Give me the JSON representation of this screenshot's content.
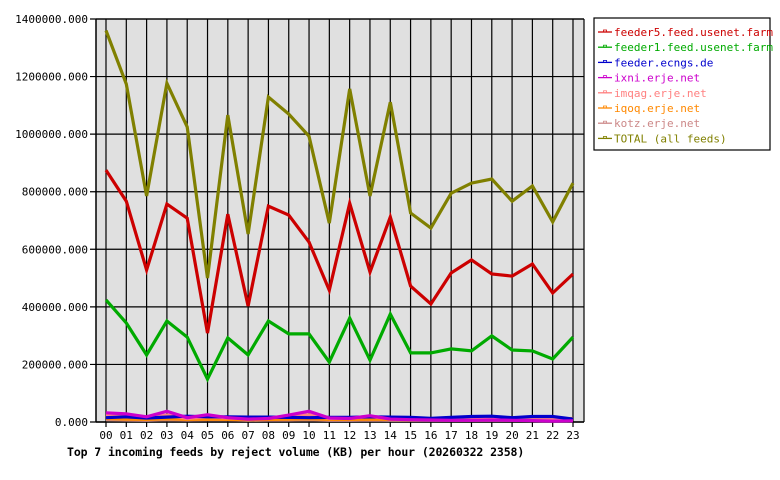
{
  "chart_data": {
    "type": "line",
    "title": "Top 7 incoming feeds by reject volume (KB) per hour (20260322 2358)",
    "xlabel": "",
    "ylabel": "",
    "ylim": [
      0,
      1400000
    ],
    "yticks": [
      "0.000",
      "200000.000",
      "400000.000",
      "600000.000",
      "800000.000",
      "1000000.000",
      "1200000.000",
      "1400000.000"
    ],
    "grid": true,
    "legend_position": "right",
    "categories": [
      "00",
      "01",
      "02",
      "03",
      "04",
      "05",
      "06",
      "07",
      "08",
      "09",
      "10",
      "11",
      "12",
      "13",
      "14",
      "15",
      "16",
      "17",
      "18",
      "19",
      "20",
      "21",
      "22",
      "23"
    ],
    "series": [
      {
        "name": "feeder5.feed.usenet.farm",
        "color": "#cc0000",
        "values": [
          875000,
          767000,
          528000,
          757000,
          708000,
          309000,
          722000,
          403000,
          750000,
          719000,
          625000,
          458000,
          760000,
          521000,
          712000,
          472000,
          410000,
          518000,
          563000,
          514000,
          507000,
          549000,
          448000,
          514000
        ]
      },
      {
        "name": "feeder1.feed.usenet.farm",
        "color": "#00aa00",
        "values": [
          424000,
          344000,
          233000,
          351000,
          295000,
          149000,
          292000,
          233000,
          351000,
          306000,
          306000,
          208000,
          361000,
          215000,
          375000,
          240000,
          240000,
          254000,
          247000,
          299000,
          250000,
          247000,
          219000,
          295000
        ]
      },
      {
        "name": "feeder.ecngs.de",
        "color": "#0000cc",
        "values": [
          15000,
          18000,
          14000,
          17000,
          20000,
          18000,
          18000,
          17000,
          17000,
          16000,
          15000,
          16000,
          16000,
          18000,
          17000,
          16000,
          13000,
          16000,
          19000,
          20000,
          15000,
          19000,
          19000,
          10000
        ]
      },
      {
        "name": "ixni.erje.net",
        "color": "#cc00cc",
        "values": [
          32000,
          28000,
          18000,
          37000,
          15000,
          25000,
          15000,
          10000,
          12000,
          24000,
          37000,
          14000,
          12000,
          22000,
          10000,
          8000,
          7000,
          6000,
          6000,
          7000,
          6000,
          5000,
          3000,
          4000
        ]
      },
      {
        "name": "imqag.erje.net",
        "color": "#ff8080",
        "values": [
          25000,
          20000,
          14000,
          24000,
          12000,
          18000,
          14000,
          12000,
          14000,
          20000,
          25000,
          12000,
          14000,
          18000,
          12000,
          10000,
          9000,
          10000,
          10000,
          12000,
          10000,
          10000,
          9000,
          8000
        ]
      },
      {
        "name": "iqoq.erje.net",
        "color": "#ff8800",
        "values": [
          12000,
          10000,
          9000,
          11000,
          9000,
          10000,
          9000,
          8000,
          9000,
          10000,
          11000,
          9000,
          9000,
          10000,
          9000,
          8000,
          8000,
          8000,
          8000,
          8000,
          8000,
          9000,
          10000,
          12000
        ]
      },
      {
        "name": "kotz.erje.net",
        "color": "#cc8888",
        "values": [
          8000,
          7000,
          6000,
          8000,
          7000,
          8000,
          8000,
          6000,
          7000,
          7000,
          8000,
          6000,
          6000,
          7000,
          6000,
          6000,
          6000,
          6000,
          6000,
          6000,
          6000,
          6000,
          6000,
          6000
        ]
      },
      {
        "name": "TOTAL (all feeds)",
        "color": "#808000",
        "values": [
          1360000,
          1174000,
          785000,
          1177000,
          1025000,
          500000,
          1066000,
          653000,
          1129000,
          1070000,
          993000,
          691000,
          1157000,
          785000,
          1111000,
          726000,
          674000,
          795000,
          830000,
          844000,
          767000,
          820000,
          695000,
          830000
        ]
      }
    ]
  },
  "layout": {
    "plot_bg": "#e0e0e0",
    "grid_color": "#000000"
  }
}
